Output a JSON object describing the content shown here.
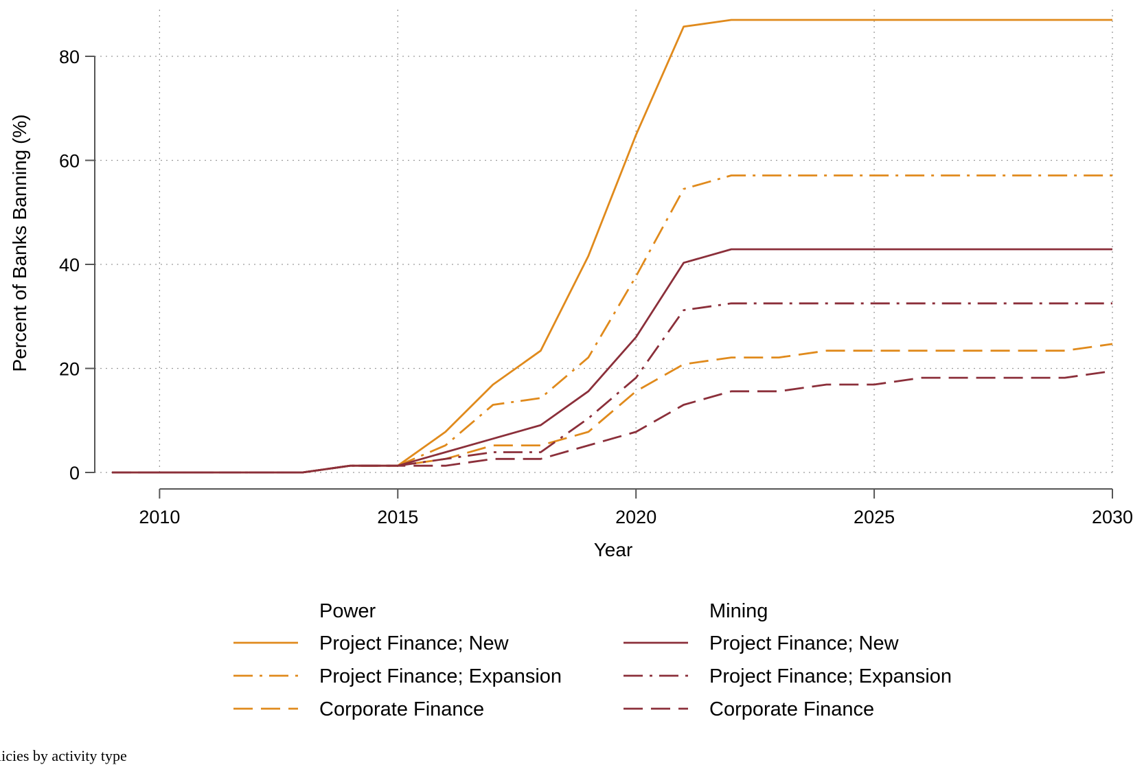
{
  "chart_data": {
    "type": "line",
    "title": "",
    "xlabel": "Year",
    "ylabel": "Percent of Banks Banning (%)",
    "xlim": [
      2009,
      2030
    ],
    "ylim": [
      0,
      87
    ],
    "x_ticks": [
      2010,
      2015,
      2020,
      2025,
      2030
    ],
    "y_ticks": [
      0,
      20,
      40,
      60,
      80
    ],
    "grid": true,
    "legend_position": "bottom",
    "x": [
      2009,
      2010,
      2011,
      2012,
      2013,
      2014,
      2015,
      2016,
      2017,
      2018,
      2019,
      2020,
      2021,
      2022,
      2023,
      2024,
      2025,
      2026,
      2027,
      2028,
      2029,
      2030
    ],
    "groups": [
      {
        "name": "Power",
        "color": "#e08a1c",
        "series": [
          {
            "name": "Project Finance; New",
            "style": "solid",
            "values": [
              0,
              0,
              0,
              0,
              0,
              1.3,
              1.3,
              7.8,
              16.9,
              23.4,
              41.6,
              64.9,
              85.7,
              87.0,
              87.0,
              87.0,
              87.0,
              87.0,
              87.0,
              87.0,
              87.0,
              87.0
            ]
          },
          {
            "name": "Project Finance; Expansion",
            "style": "dashdot",
            "values": [
              0,
              0,
              0,
              0,
              0,
              1.3,
              1.3,
              5.2,
              13.0,
              14.3,
              22.1,
              37.7,
              54.5,
              57.1,
              57.1,
              57.1,
              57.1,
              57.1,
              57.1,
              57.1,
              57.1,
              57.1
            ]
          },
          {
            "name": "Corporate Finance",
            "style": "dash",
            "values": [
              0,
              0,
              0,
              0,
              0,
              1.3,
              1.3,
              2.6,
              5.2,
              5.2,
              7.8,
              15.6,
              20.8,
              22.1,
              22.1,
              23.4,
              23.4,
              23.4,
              23.4,
              23.4,
              23.4,
              24.7
            ]
          }
        ]
      },
      {
        "name": "Mining",
        "color": "#8b2f3a",
        "series": [
          {
            "name": "Project Finance; New",
            "style": "solid",
            "values": [
              0,
              0,
              0,
              0,
              0,
              1.3,
              1.3,
              3.9,
              6.5,
              9.1,
              15.6,
              26.0,
              40.3,
              42.9,
              42.9,
              42.9,
              42.9,
              42.9,
              42.9,
              42.9,
              42.9,
              42.9
            ]
          },
          {
            "name": "Project Finance; Expansion",
            "style": "dashdot",
            "values": [
              0,
              0,
              0,
              0,
              0,
              1.3,
              1.3,
              2.6,
              3.9,
              3.9,
              10.4,
              18.2,
              31.2,
              32.5,
              32.5,
              32.5,
              32.5,
              32.5,
              32.5,
              32.5,
              32.5,
              32.5
            ]
          },
          {
            "name": "Corporate Finance",
            "style": "dash",
            "values": [
              0,
              0,
              0,
              0,
              0,
              1.3,
              1.3,
              1.3,
              2.6,
              2.6,
              5.2,
              7.8,
              13.0,
              15.6,
              15.6,
              16.9,
              16.9,
              18.2,
              18.2,
              18.2,
              18.2,
              19.5
            ]
          }
        ]
      }
    ]
  },
  "caption": "licies by activity type"
}
